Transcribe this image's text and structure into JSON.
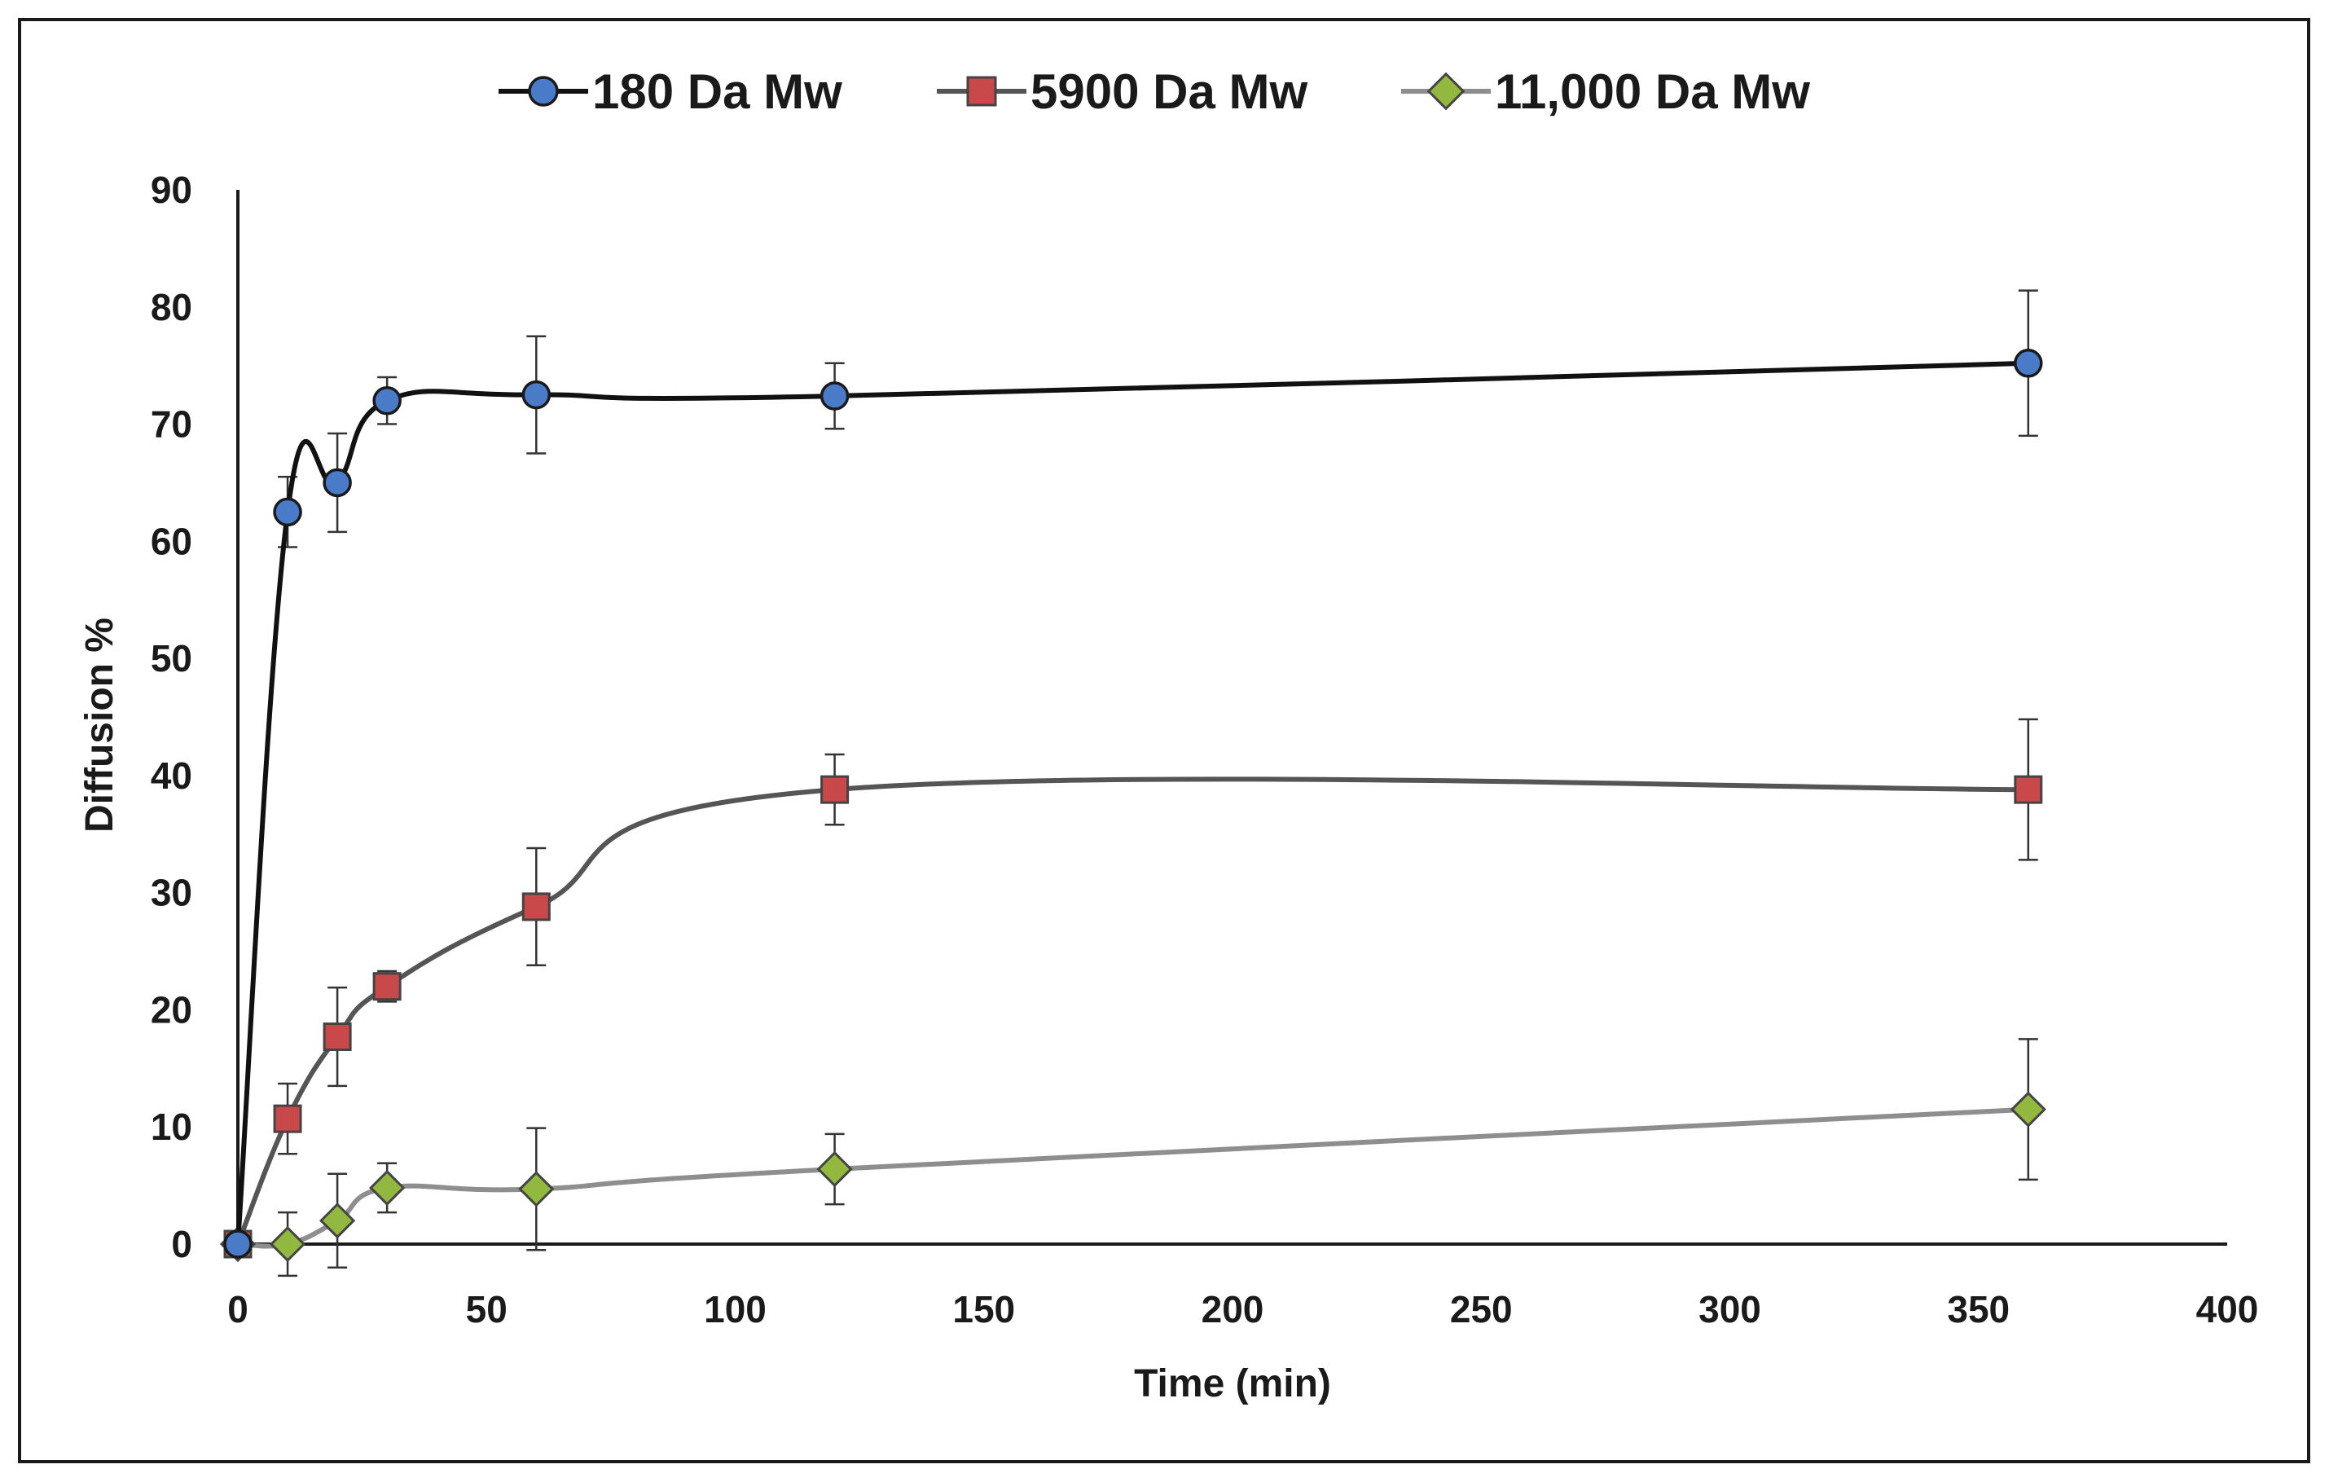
{
  "chart_data": {
    "type": "line",
    "title": "",
    "xlabel": "Time (min)",
    "ylabel": "Diffusion %",
    "xlim": [
      0,
      400
    ],
    "ylim": [
      0,
      90
    ],
    "xticks": [
      0,
      50,
      100,
      150,
      200,
      250,
      300,
      350,
      400
    ],
    "yticks": [
      0,
      10,
      20,
      30,
      40,
      50,
      60,
      70,
      80,
      90
    ],
    "grid": false,
    "legend_position": "top-center",
    "series": [
      {
        "name": "180 Da Mw",
        "marker": "circle",
        "line_color": "#111111",
        "marker_color": "#4a7bc9",
        "x": [
          0,
          10,
          20,
          30,
          60,
          120,
          360
        ],
        "values": [
          0,
          62.5,
          65,
          72,
          72.5,
          72.4,
          75.2
        ],
        "errors": [
          0,
          3,
          4.2,
          2,
          5,
          2.8,
          6.2
        ]
      },
      {
        "name": "5900 Da Mw",
        "marker": "square",
        "line_color": "#555555",
        "marker_color": "#c9484a",
        "x": [
          0,
          10,
          20,
          30,
          60,
          120,
          360
        ],
        "values": [
          0,
          10.7,
          17.7,
          22,
          28.8,
          38.8,
          38.8
        ],
        "errors": [
          0,
          3,
          4.2,
          1.3,
          5,
          3,
          6
        ]
      },
      {
        "name": "11,000 Da Mw",
        "marker": "diamond",
        "line_color": "#8e8e8e",
        "marker_color": "#92b83f",
        "x": [
          0,
          10,
          20,
          30,
          60,
          120,
          360
        ],
        "values": [
          0,
          0,
          2,
          4.8,
          4.7,
          6.4,
          11.5
        ],
        "errors": [
          0,
          2.7,
          4,
          2.1,
          5.2,
          3,
          6
        ]
      }
    ]
  }
}
